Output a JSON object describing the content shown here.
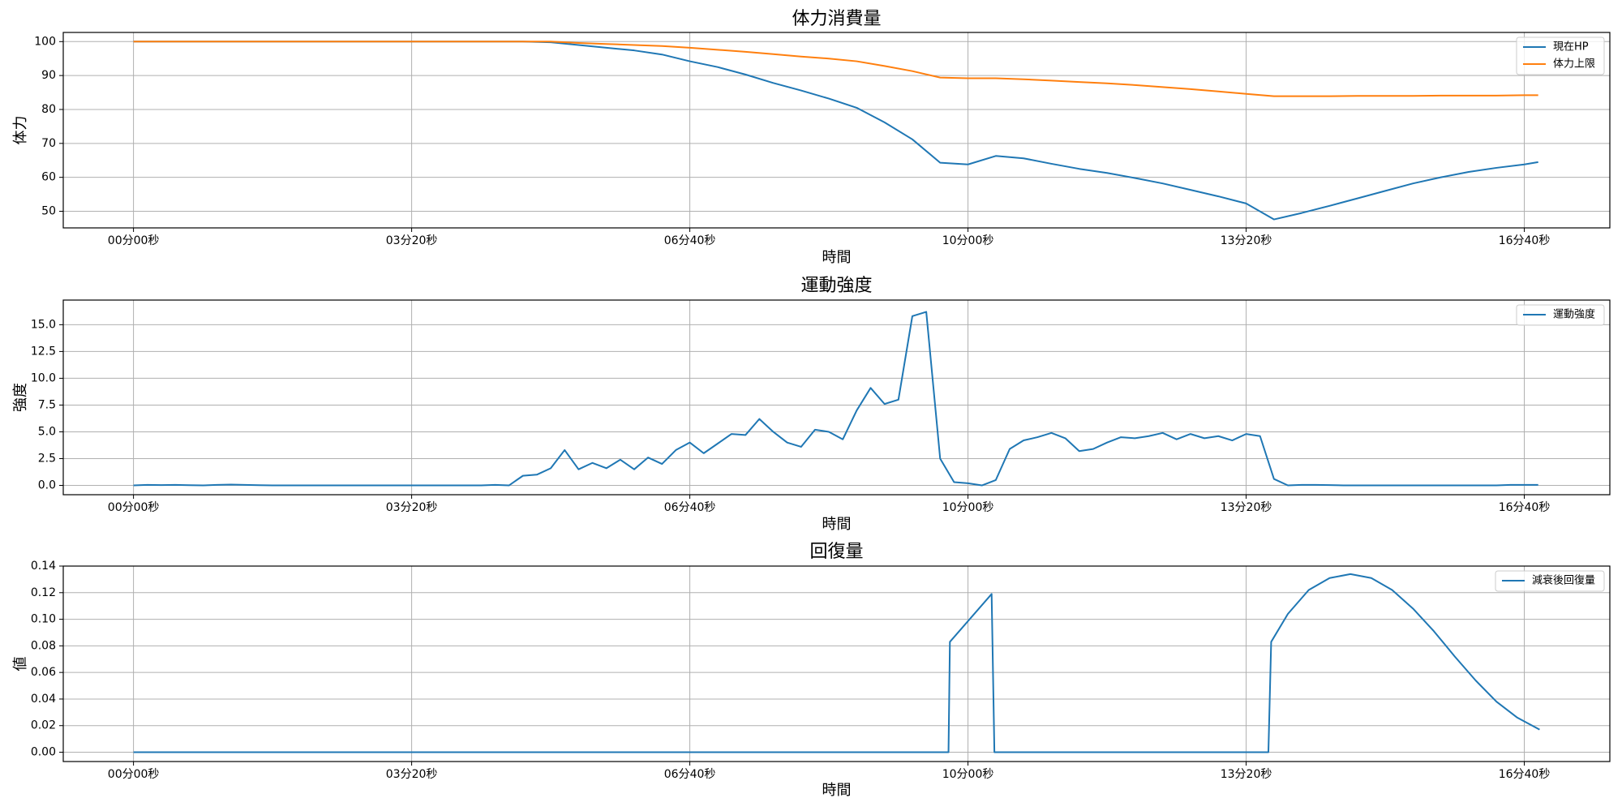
{
  "chart_data": [
    {
      "type": "line",
      "title": "体力消費量",
      "xlabel": "時間",
      "ylabel": "体力",
      "grid": true,
      "legend": "upper right",
      "xlim": [
        -50.5,
        1061.5
      ],
      "ylim": [
        45.1,
        102.7
      ],
      "xticks": [
        {
          "value": 0,
          "label": "00分00秒"
        },
        {
          "value": 200,
          "label": "03分20秒"
        },
        {
          "value": 400,
          "label": "06分40秒"
        },
        {
          "value": 600,
          "label": "10分00秒"
        },
        {
          "value": 800,
          "label": "13分20秒"
        },
        {
          "value": 1000,
          "label": "16分40秒"
        }
      ],
      "yticks": [
        50,
        60,
        70,
        80,
        90,
        100
      ],
      "x": [
        0,
        20,
        40,
        60,
        80,
        100,
        120,
        140,
        160,
        180,
        200,
        220,
        240,
        260,
        280,
        300,
        320,
        340,
        360,
        380,
        400,
        420,
        440,
        460,
        480,
        500,
        520,
        540,
        560,
        580,
        600,
        620,
        640,
        660,
        680,
        700,
        720,
        740,
        760,
        780,
        800,
        820,
        840,
        860,
        880,
        900,
        920,
        940,
        960,
        980,
        1000,
        1010
      ],
      "series": [
        {
          "name": "現在HP",
          "color": "#1f77b4",
          "values": [
            100,
            100,
            100,
            100,
            100,
            100,
            100,
            100,
            100,
            100,
            100,
            100,
            100,
            100,
            100,
            99.8,
            99,
            98.2,
            97.4,
            96.2,
            94.2,
            92.5,
            90.3,
            87.8,
            85.6,
            83.2,
            80.5,
            76.2,
            71.2,
            64.3,
            63.8,
            66.3,
            65.6,
            64,
            62.5,
            61.3,
            59.8,
            58.2,
            56.3,
            54.4,
            52.3,
            47.6,
            49.5,
            51.6,
            53.8,
            56,
            58.2,
            60,
            61.6,
            62.8,
            63.8,
            64.5
          ]
        },
        {
          "name": "体力上限",
          "color": "#ff7f0e",
          "values": [
            100,
            100,
            100,
            100,
            100,
            100,
            100,
            100,
            100,
            100,
            100,
            100,
            100,
            100,
            100,
            100,
            99.6,
            99.3,
            99,
            98.7,
            98.2,
            97.6,
            97,
            96.3,
            95.6,
            95,
            94.2,
            92.8,
            91.3,
            89.4,
            89.2,
            89.2,
            88.9,
            88.5,
            88.1,
            87.7,
            87.2,
            86.6,
            86,
            85.3,
            84.6,
            83.9,
            83.9,
            83.9,
            84,
            84,
            84,
            84.1,
            84.1,
            84.1,
            84.2,
            84.2
          ]
        }
      ]
    },
    {
      "type": "line",
      "title": "運動強度",
      "xlabel": "時間",
      "ylabel": "強度",
      "grid": true,
      "legend": "upper right",
      "xlim": [
        -50.5,
        1061.5
      ],
      "ylim": [
        -0.87,
        17.3
      ],
      "xticks": [
        {
          "value": 0,
          "label": "00分00秒"
        },
        {
          "value": 200,
          "label": "03分20秒"
        },
        {
          "value": 400,
          "label": "06分40秒"
        },
        {
          "value": 600,
          "label": "10分00秒"
        },
        {
          "value": 800,
          "label": "13分20秒"
        },
        {
          "value": 1000,
          "label": "16分40秒"
        }
      ],
      "yticks": [
        {
          "value": 0,
          "label": "0.0"
        },
        2.5,
        {
          "value": 5,
          "label": "5.0"
        },
        7.5,
        {
          "value": 10,
          "label": "10.0"
        },
        12.5,
        {
          "value": 15,
          "label": "15.0"
        }
      ],
      "x": [
        0,
        10,
        20,
        30,
        40,
        50,
        60,
        70,
        80,
        90,
        100,
        110,
        120,
        130,
        140,
        150,
        160,
        170,
        180,
        190,
        200,
        210,
        220,
        230,
        240,
        250,
        260,
        270,
        280,
        290,
        300,
        310,
        320,
        330,
        340,
        350,
        360,
        370,
        380,
        390,
        400,
        410,
        420,
        430,
        440,
        450,
        460,
        470,
        480,
        490,
        500,
        510,
        520,
        530,
        540,
        550,
        560,
        570,
        580,
        590,
        600,
        610,
        620,
        630,
        640,
        650,
        660,
        670,
        680,
        690,
        700,
        710,
        720,
        730,
        740,
        750,
        760,
        770,
        780,
        790,
        800,
        810,
        820,
        830,
        840,
        850,
        860,
        870,
        880,
        890,
        900,
        910,
        920,
        930,
        940,
        950,
        960,
        970,
        980,
        990,
        1000,
        1010
      ],
      "series": [
        {
          "name": "運動強度",
          "color": "#1f77b4",
          "values": [
            0,
            0.05,
            0.03,
            0.05,
            0.02,
            0,
            0.05,
            0.08,
            0.05,
            0.02,
            0,
            0,
            0,
            0,
            0,
            0,
            0,
            0,
            0,
            0,
            0,
            0,
            0,
            0,
            0,
            0,
            0.05,
            0,
            0.9,
            1.0,
            1.6,
            3.3,
            1.5,
            2.1,
            1.6,
            2.4,
            1.5,
            2.6,
            2.0,
            3.3,
            4.0,
            3.0,
            3.9,
            4.8,
            4.7,
            6.2,
            5.0,
            4.0,
            3.6,
            5.2,
            5.0,
            4.3,
            7.0,
            9.1,
            7.6,
            8.0,
            15.8,
            16.2,
            2.5,
            0.3,
            0.2,
            0,
            0.5,
            3.4,
            4.2,
            4.5,
            4.9,
            4.4,
            3.2,
            3.4,
            4.0,
            4.5,
            4.4,
            4.6,
            4.9,
            4.3,
            4.8,
            4.4,
            4.6,
            4.2,
            4.8,
            4.6,
            0.6,
            0,
            0.05,
            0.05,
            0.03,
            0,
            0,
            0,
            0,
            0,
            0,
            0,
            0,
            0,
            0,
            0,
            0,
            0.05,
            0.05,
            0.05
          ]
        }
      ]
    },
    {
      "type": "line",
      "title": "回復量",
      "xlabel": "時間",
      "ylabel": "値",
      "grid": true,
      "legend": "upper right",
      "xlim": [
        -50.5,
        1061.5
      ],
      "ylim": [
        -0.007,
        0.14
      ],
      "xticks": [
        {
          "value": 0,
          "label": "00分00秒"
        },
        {
          "value": 200,
          "label": "03分20秒"
        },
        {
          "value": 400,
          "label": "06分40秒"
        },
        {
          "value": 600,
          "label": "10分00秒"
        },
        {
          "value": 800,
          "label": "13分20秒"
        },
        {
          "value": 1000,
          "label": "16分40秒"
        }
      ],
      "yticks": [
        {
          "value": 0,
          "label": "0.00"
        },
        0.02,
        0.04,
        0.06,
        0.08,
        {
          "value": 0.1,
          "label": "0.10"
        },
        0.12,
        0.14
      ],
      "x": [
        0,
        586,
        587,
        617,
        619,
        816,
        818,
        830,
        845,
        860,
        875,
        890,
        905,
        920,
        935,
        950,
        965,
        980,
        995,
        1011
      ],
      "series": [
        {
          "name": "減衰後回復量",
          "color": "#1f77b4",
          "values": [
            0,
            0,
            0.083,
            0.119,
            0,
            0,
            0.083,
            0.104,
            0.122,
            0.131,
            0.134,
            0.131,
            0.122,
            0.108,
            0.091,
            0.072,
            0.054,
            0.038,
            0.026,
            0.017
          ]
        }
      ]
    }
  ]
}
